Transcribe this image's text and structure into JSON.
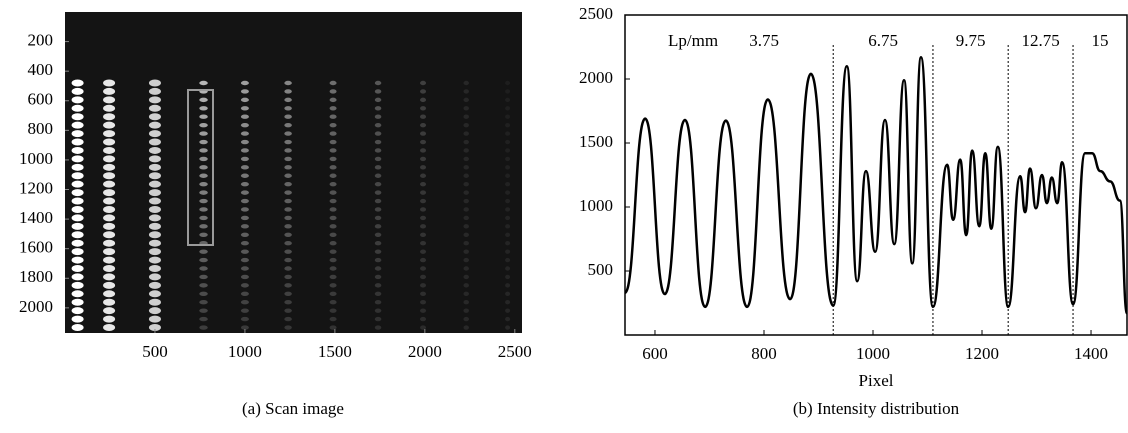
{
  "chart_data": [
    {
      "type": "image",
      "caption": "(a) Scan image",
      "xlim": [
        0,
        2540
      ],
      "ylim": [
        0,
        2170
      ],
      "xticks": [
        500,
        1000,
        1500,
        2000,
        2500
      ],
      "yticks": [
        200,
        400,
        600,
        800,
        1000,
        1200,
        1400,
        1600,
        1800,
        2000
      ]
    },
    {
      "type": "line",
      "caption": "(b) Intensity distribution",
      "xlabel": "Pixel",
      "unit_label": "Lp/mm",
      "regions": [
        "3.75",
        "6.75",
        "9.75",
        "12.75",
        "15"
      ],
      "dividers": [
        927,
        1110,
        1248,
        1367
      ],
      "xlim": [
        545,
        1466
      ],
      "ylim": [
        0,
        2500
      ],
      "xticks": [
        600,
        800,
        1000,
        1200,
        1400
      ],
      "yticks": [
        500,
        1000,
        1500,
        2000,
        2500
      ],
      "color": "#000000",
      "x": [
        545,
        582,
        618,
        655,
        692,
        730,
        769,
        807,
        848,
        886,
        927,
        952,
        971,
        987,
        1004,
        1022,
        1039,
        1057,
        1072,
        1088,
        1110,
        1136,
        1147,
        1160,
        1171,
        1182,
        1195,
        1206,
        1217,
        1229,
        1248,
        1270,
        1279,
        1288,
        1299,
        1310,
        1319,
        1328,
        1338,
        1347,
        1367,
        1389,
        1402,
        1417,
        1435,
        1453,
        1466
      ],
      "values": [
        330,
        1690,
        320,
        1680,
        220,
        1675,
        220,
        1840,
        280,
        2040,
        230,
        2100,
        420,
        1280,
        650,
        1680,
        710,
        1990,
        560,
        2170,
        220,
        1330,
        900,
        1370,
        780,
        1440,
        850,
        1420,
        830,
        1470,
        220,
        1240,
        960,
        1300,
        990,
        1250,
        1030,
        1230,
        1030,
        1350,
        240,
        1420,
        1420,
        1280,
        1200,
        1050,
        170
      ]
    }
  ]
}
